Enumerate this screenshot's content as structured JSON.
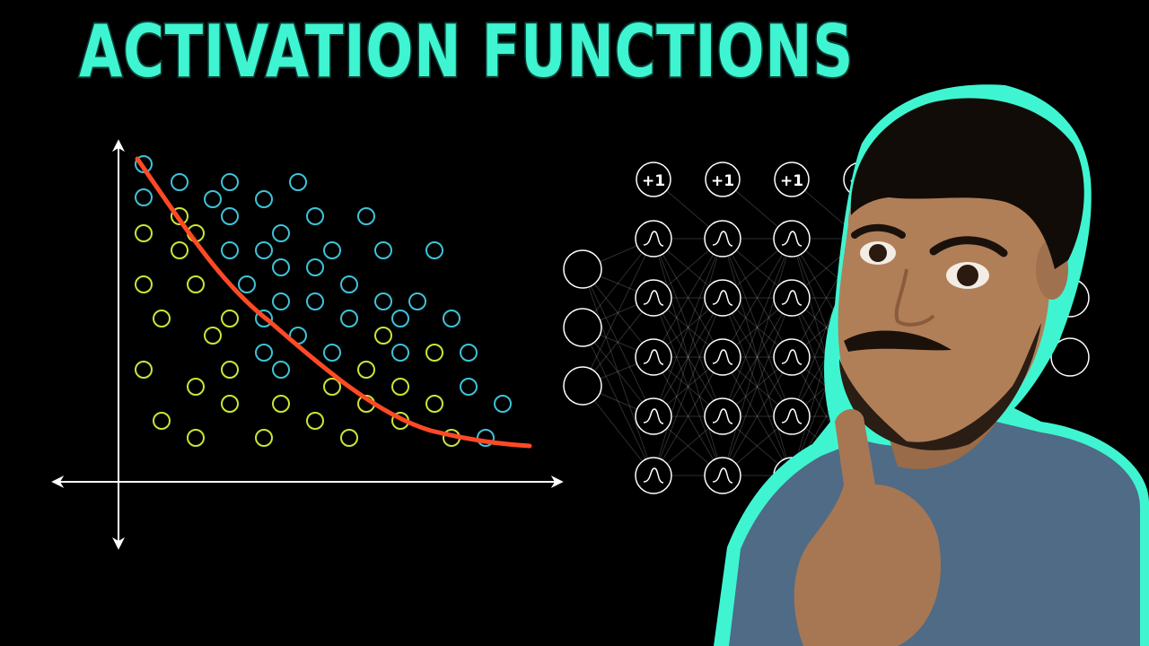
{
  "title": "ACTIVATION FUNCTIONS",
  "colors": {
    "background": "#000000",
    "title_fill": "#3FF5D1",
    "title_outline": "#0A3D36",
    "cyan_points": "#3EC3D8",
    "yellow_points": "#C8E638",
    "curve": "#FF4A25",
    "axes": "#FFFFFF",
    "network": "#FFFFFF",
    "person_outline": "#3FF5D1",
    "shirt": "#4F6B86",
    "skin": "#B07F58",
    "hair": "#120C08"
  },
  "network": {
    "bias_label": "+1",
    "activation_icon": "sigmoid-icon"
  },
  "person": {
    "description_icon": "thinking-person-icon"
  }
}
